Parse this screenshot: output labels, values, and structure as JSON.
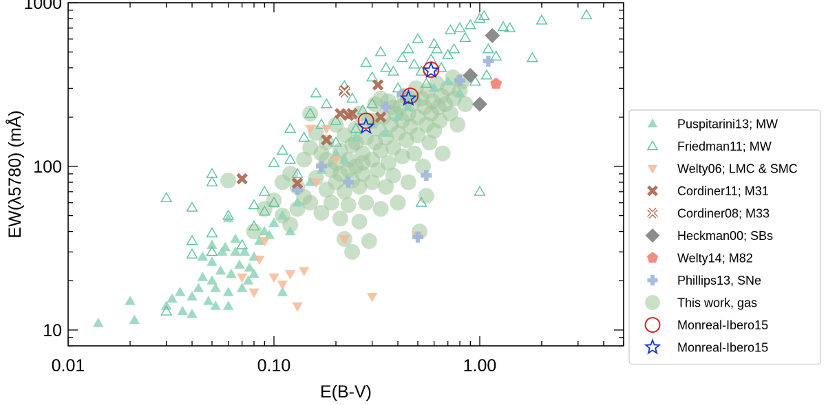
{
  "chart_data": {
    "type": "scatter",
    "title": "",
    "xlabel": "E(B-V)",
    "ylabel": "EW(λ5780) (mÅ)",
    "xscale": "log",
    "yscale": "log",
    "xlim": [
      0.01,
      5.0
    ],
    "ylim": [
      8,
      1000
    ],
    "xticks": [
      {
        "value": 0.01,
        "label": "0.01"
      },
      {
        "value": 0.1,
        "label": "0.10"
      },
      {
        "value": 1.0,
        "label": "1.00"
      }
    ],
    "yticks": [
      {
        "value": 10,
        "label": "10"
      },
      {
        "value": 100,
        "label": "100"
      },
      {
        "value": 1000,
        "label": "1000"
      }
    ],
    "legend_position": "right",
    "series": [
      {
        "name": "Puspitarini13; MW",
        "marker": "triangle-up-filled",
        "color": "#8fd3b8",
        "points": [
          [
            0.014,
            11
          ],
          [
            0.02,
            15
          ],
          [
            0.021,
            11.5
          ],
          [
            0.03,
            14
          ],
          [
            0.032,
            15.5
          ],
          [
            0.035,
            17
          ],
          [
            0.036,
            13
          ],
          [
            0.04,
            16
          ],
          [
            0.04,
            12.5
          ],
          [
            0.043,
            18
          ],
          [
            0.045,
            21
          ],
          [
            0.048,
            15
          ],
          [
            0.05,
            26
          ],
          [
            0.05,
            20
          ],
          [
            0.052,
            18
          ],
          [
            0.052,
            14
          ],
          [
            0.055,
            23
          ],
          [
            0.056,
            30
          ],
          [
            0.058,
            32
          ],
          [
            0.06,
            17
          ],
          [
            0.06,
            14
          ],
          [
            0.062,
            22
          ],
          [
            0.065,
            36
          ],
          [
            0.068,
            25
          ],
          [
            0.07,
            18
          ],
          [
            0.072,
            30
          ],
          [
            0.075,
            20
          ],
          [
            0.076,
            24
          ],
          [
            0.08,
            28
          ],
          [
            0.085,
            35
          ],
          [
            0.09,
            40
          ],
          [
            0.095,
            38
          ],
          [
            0.1,
            45
          ],
          [
            0.11,
            50
          ],
          [
            0.11,
            17
          ],
          [
            0.12,
            40
          ],
          [
            0.13,
            60
          ],
          [
            0.15,
            80
          ],
          [
            0.17,
            95
          ],
          [
            0.2,
            120
          ],
          [
            0.22,
            110
          ],
          [
            0.25,
            150
          ],
          [
            0.3,
            180
          ],
          [
            0.35,
            160
          ],
          [
            0.4,
            200
          ],
          [
            0.45,
            230
          ],
          [
            0.5,
            260
          ],
          [
            0.6,
            300
          ],
          [
            0.7,
            330
          ],
          [
            0.8,
            280
          ],
          [
            0.06,
            48
          ],
          [
            0.05,
            33
          ],
          [
            0.045,
            28
          ],
          [
            0.065,
            30
          ],
          [
            0.08,
            22
          ]
        ]
      },
      {
        "name": "Friedman11; MW",
        "marker": "triangle-up-open",
        "color": "#5cc49d",
        "points": [
          [
            0.03,
            64
          ],
          [
            0.03,
            13
          ],
          [
            0.04,
            56
          ],
          [
            0.04,
            35
          ],
          [
            0.04,
            29
          ],
          [
            0.05,
            90
          ],
          [
            0.05,
            80
          ],
          [
            0.05,
            39
          ],
          [
            0.05,
            30
          ],
          [
            0.06,
            50
          ],
          [
            0.07,
            33
          ],
          [
            0.08,
            58
          ],
          [
            0.08,
            43
          ],
          [
            0.09,
            70
          ],
          [
            0.09,
            53
          ],
          [
            0.1,
            105
          ],
          [
            0.1,
            60
          ],
          [
            0.11,
            125
          ],
          [
            0.12,
            170
          ],
          [
            0.12,
            110
          ],
          [
            0.13,
            90
          ],
          [
            0.14,
            150
          ],
          [
            0.15,
            210
          ],
          [
            0.16,
            280
          ],
          [
            0.17,
            180
          ],
          [
            0.18,
            240
          ],
          [
            0.2,
            190
          ],
          [
            0.2,
            140
          ],
          [
            0.22,
            310
          ],
          [
            0.24,
            260
          ],
          [
            0.25,
            170
          ],
          [
            0.27,
            220
          ],
          [
            0.28,
            430
          ],
          [
            0.3,
            350
          ],
          [
            0.3,
            240
          ],
          [
            0.33,
            500
          ],
          [
            0.35,
            400
          ],
          [
            0.38,
            380
          ],
          [
            0.4,
            300
          ],
          [
            0.42,
            460
          ],
          [
            0.45,
            520
          ],
          [
            0.48,
            420
          ],
          [
            0.5,
            600
          ],
          [
            0.52,
            380
          ],
          [
            0.55,
            320
          ],
          [
            0.58,
            450
          ],
          [
            0.6,
            560
          ],
          [
            0.62,
            520
          ],
          [
            0.65,
            400
          ],
          [
            0.7,
            480
          ],
          [
            0.72,
            680
          ],
          [
            0.75,
            520
          ],
          [
            0.8,
            700
          ],
          [
            0.85,
            610
          ],
          [
            0.9,
            730
          ],
          [
            1.0,
            800
          ],
          [
            1.05,
            830
          ],
          [
            1.1,
            520
          ],
          [
            1.2,
            470
          ],
          [
            1.3,
            710
          ],
          [
            1.4,
            700
          ],
          [
            1.8,
            460
          ],
          [
            2.0,
            780
          ],
          [
            3.3,
            840
          ],
          [
            1.0,
            70
          ],
          [
            0.52,
            60
          ],
          [
            0.95,
            330
          ],
          [
            1.08,
            360
          ]
        ]
      },
      {
        "name": "Welty06; LMC & SMC",
        "marker": "triangle-down-filled",
        "color": "#f7b896",
        "points": [
          [
            0.07,
            21
          ],
          [
            0.08,
            17
          ],
          [
            0.085,
            27
          ],
          [
            0.09,
            35
          ],
          [
            0.1,
            21
          ],
          [
            0.11,
            19
          ],
          [
            0.12,
            22
          ],
          [
            0.13,
            14
          ],
          [
            0.14,
            23
          ],
          [
            0.15,
            170
          ],
          [
            0.16,
            80
          ],
          [
            0.17,
            100
          ],
          [
            0.18,
            170
          ],
          [
            0.2,
            110
          ],
          [
            0.22,
            36
          ],
          [
            0.3,
            16
          ],
          [
            0.5,
            38
          ]
        ]
      },
      {
        "name": "Cordiner11; M31",
        "marker": "x-filled",
        "color": "#b06a55",
        "points": [
          [
            0.07,
            84
          ],
          [
            0.13,
            79
          ],
          [
            0.18,
            145
          ],
          [
            0.21,
            210
          ],
          [
            0.22,
            290
          ],
          [
            0.23,
            205
          ],
          [
            0.24,
            210
          ],
          [
            0.32,
            315
          ],
          [
            0.33,
            200
          ]
        ]
      },
      {
        "name": "Cordiner08; M33",
        "marker": "x-open",
        "color": "#b06a55",
        "points": [
          [
            0.22,
            285
          ]
        ]
      },
      {
        "name": "Heckman00; SBs",
        "marker": "diamond-filled",
        "color": "#808080",
        "points": [
          [
            0.9,
            360
          ],
          [
            1.0,
            240
          ],
          [
            1.15,
            630
          ]
        ]
      },
      {
        "name": "Welty14; M82",
        "marker": "pentagon-filled",
        "color": "#f08070",
        "points": [
          [
            1.2,
            320
          ]
        ]
      },
      {
        "name": "Phillips13, SNe",
        "marker": "plus-filled",
        "color": "#9fb5dd",
        "points": [
          [
            0.13,
            72
          ],
          [
            0.17,
            100
          ],
          [
            0.23,
            80
          ],
          [
            0.35,
            230
          ],
          [
            0.42,
            275
          ],
          [
            0.5,
            37
          ],
          [
            0.55,
            88
          ],
          [
            0.8,
            335
          ],
          [
            1.1,
            440
          ]
        ]
      },
      {
        "name": "This work, gas",
        "marker": "circle-filled",
        "color": "#9fc49a",
        "points": [
          [
            0.06,
            82
          ],
          [
            0.08,
            40
          ],
          [
            0.09,
            55
          ],
          [
            0.1,
            62
          ],
          [
            0.11,
            50
          ],
          [
            0.11,
            80
          ],
          [
            0.12,
            44
          ],
          [
            0.12,
            90
          ],
          [
            0.13,
            55
          ],
          [
            0.13,
            75
          ],
          [
            0.14,
            65
          ],
          [
            0.14,
            110
          ],
          [
            0.15,
            60
          ],
          [
            0.15,
            130
          ],
          [
            0.15,
            210
          ],
          [
            0.16,
            85
          ],
          [
            0.16,
            160
          ],
          [
            0.17,
            52
          ],
          [
            0.17,
            120
          ],
          [
            0.18,
            72
          ],
          [
            0.18,
            140
          ],
          [
            0.19,
            95
          ],
          [
            0.19,
            60
          ],
          [
            0.2,
            105
          ],
          [
            0.2,
            180
          ],
          [
            0.21,
            48
          ],
          [
            0.21,
            90
          ],
          [
            0.21,
            125
          ],
          [
            0.22,
            70
          ],
          [
            0.22,
            36
          ],
          [
            0.22,
            155
          ],
          [
            0.23,
            110
          ],
          [
            0.23,
            58
          ],
          [
            0.24,
            82
          ],
          [
            0.24,
            135
          ],
          [
            0.24,
            30
          ],
          [
            0.25,
            100
          ],
          [
            0.25,
            170
          ],
          [
            0.26,
            46
          ],
          [
            0.26,
            75
          ],
          [
            0.26,
            210
          ],
          [
            0.27,
            120
          ],
          [
            0.27,
            90
          ],
          [
            0.28,
            150
          ],
          [
            0.28,
            60
          ],
          [
            0.29,
            35
          ],
          [
            0.29,
            190
          ],
          [
            0.3,
            110
          ],
          [
            0.3,
            80
          ],
          [
            0.31,
            140
          ],
          [
            0.31,
            240
          ],
          [
            0.32,
            95
          ],
          [
            0.32,
            170
          ],
          [
            0.33,
            55
          ],
          [
            0.33,
            125
          ],
          [
            0.34,
            200
          ],
          [
            0.35,
            75
          ],
          [
            0.35,
            150
          ],
          [
            0.36,
            105
          ],
          [
            0.36,
            250
          ],
          [
            0.37,
            180
          ],
          [
            0.38,
            130
          ],
          [
            0.38,
            88
          ],
          [
            0.39,
            210
          ],
          [
            0.4,
            160
          ],
          [
            0.4,
            60
          ],
          [
            0.41,
            230
          ],
          [
            0.42,
            115
          ],
          [
            0.42,
            190
          ],
          [
            0.43,
            270
          ],
          [
            0.44,
            145
          ],
          [
            0.45,
            80
          ],
          [
            0.45,
            210
          ],
          [
            0.46,
            175
          ],
          [
            0.47,
            240
          ],
          [
            0.48,
            120
          ],
          [
            0.49,
            300
          ],
          [
            0.5,
            200
          ],
          [
            0.5,
            155
          ],
          [
            0.51,
            40
          ],
          [
            0.52,
            260
          ],
          [
            0.53,
            100
          ],
          [
            0.54,
            230
          ],
          [
            0.55,
            180
          ],
          [
            0.55,
            66
          ],
          [
            0.56,
            290
          ],
          [
            0.57,
            140
          ],
          [
            0.58,
            210
          ],
          [
            0.59,
            250
          ],
          [
            0.6,
            165
          ],
          [
            0.62,
            320
          ],
          [
            0.63,
            230
          ],
          [
            0.64,
            190
          ],
          [
            0.65,
            270
          ],
          [
            0.66,
            120
          ],
          [
            0.68,
            240
          ],
          [
            0.7,
            300
          ],
          [
            0.72,
            210
          ],
          [
            0.74,
            350
          ],
          [
            0.75,
            260
          ],
          [
            0.78,
            180
          ],
          [
            0.8,
            290
          ],
          [
            0.82,
            330
          ],
          [
            0.85,
            240
          ],
          [
            0.45,
            260
          ],
          [
            0.38,
            230
          ],
          [
            0.3,
            190
          ],
          [
            0.25,
            140
          ],
          [
            0.2,
            80
          ],
          [
            0.18,
            110
          ],
          [
            0.33,
            260
          ],
          [
            0.27,
            105
          ],
          [
            0.23,
            95
          ]
        ]
      },
      {
        "name": "Monreal-Ibero15",
        "marker": "circle-open",
        "color": "#e02020",
        "points": [
          [
            0.28,
            190
          ],
          [
            0.46,
            270
          ],
          [
            0.58,
            390
          ]
        ]
      },
      {
        "name": "Monreal-Ibero15",
        "marker": "star-open",
        "color": "#1530d0",
        "points": [
          [
            0.28,
            175
          ],
          [
            0.45,
            260
          ],
          [
            0.58,
            385
          ]
        ]
      }
    ]
  }
}
